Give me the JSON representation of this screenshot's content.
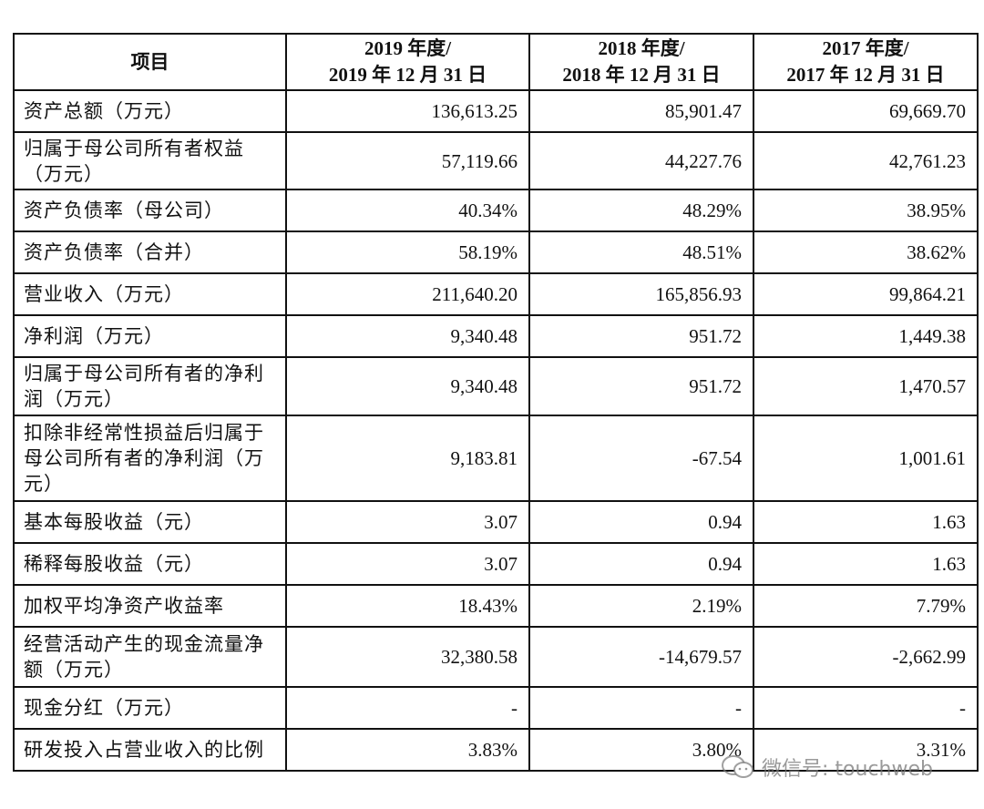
{
  "table": {
    "headers": [
      "项目",
      "2019 年度/\n2019 年 12 月 31 日",
      "2018 年度/\n2018 年 12 月 31 日",
      "2017 年度/\n2017 年 12 月 31 日"
    ],
    "rows": [
      {
        "label": "资产总额（万元）",
        "values": [
          "136,613.25",
          "85,901.47",
          "69,669.70"
        ]
      },
      {
        "label": "归属于母公司所有者权益\n（万元）",
        "values": [
          "57,119.66",
          "44,227.76",
          "42,761.23"
        ]
      },
      {
        "label": "资产负债率（母公司）",
        "values": [
          "40.34%",
          "48.29%",
          "38.95%"
        ]
      },
      {
        "label": "资产负债率（合并）",
        "values": [
          "58.19%",
          "48.51%",
          "38.62%"
        ]
      },
      {
        "label": "营业收入（万元）",
        "values": [
          "211,640.20",
          "165,856.93",
          "99,864.21"
        ]
      },
      {
        "label": "净利润（万元）",
        "values": [
          "9,340.48",
          "951.72",
          "1,449.38"
        ]
      },
      {
        "label": "归属于母公司所有者的净利\n润（万元）",
        "values": [
          "9,340.48",
          "951.72",
          "1,470.57"
        ]
      },
      {
        "label": "扣除非经常性损益后归属于\n母公司所有者的净利润（万\n元）",
        "values": [
          "9,183.81",
          "-67.54",
          "1,001.61"
        ]
      },
      {
        "label": "基本每股收益（元）",
        "values": [
          "3.07",
          "0.94",
          "1.63"
        ]
      },
      {
        "label": "稀释每股收益（元）",
        "values": [
          "3.07",
          "0.94",
          "1.63"
        ]
      },
      {
        "label": "加权平均净资产收益率",
        "values": [
          "18.43%",
          "2.19%",
          "7.79%"
        ]
      },
      {
        "label": "经营活动产生的现金流量净\n额（万元）",
        "values": [
          "32,380.58",
          "-14,679.57",
          "-2,662.99"
        ]
      },
      {
        "label": "现金分红（万元）",
        "values": [
          "-",
          "-",
          "-"
        ]
      },
      {
        "label": "研发投入占营业收入的比例",
        "values": [
          "3.83%",
          "3.80%",
          "3.31%"
        ]
      }
    ]
  },
  "watermark": {
    "icon": "wechat-icon",
    "text": "微信号: touchweb"
  }
}
